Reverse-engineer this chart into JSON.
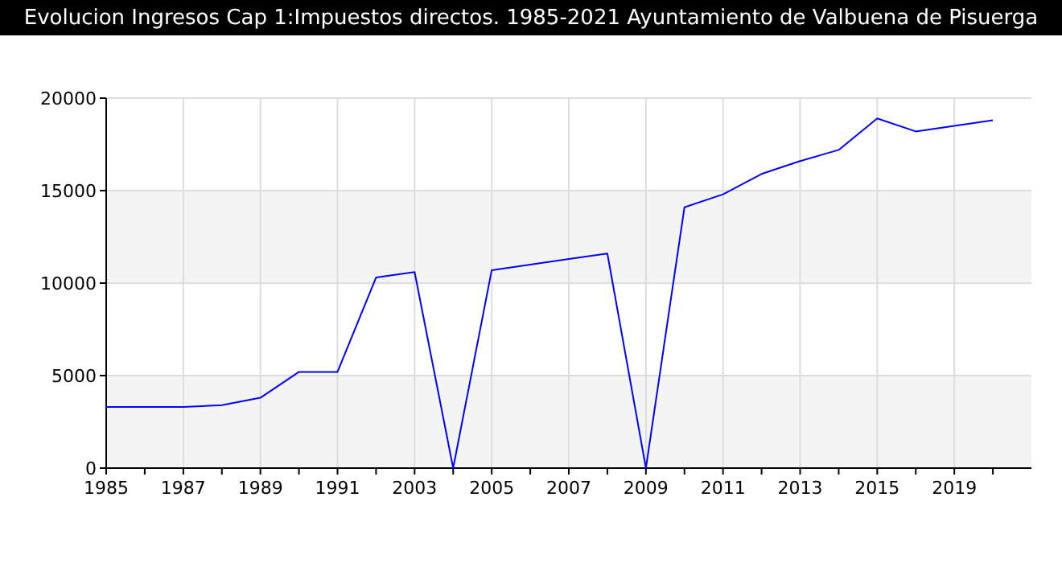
{
  "chart_data": {
    "type": "line",
    "title": "Evolucion Ingresos Cap 1:Impuestos directos. 1985-2021 Ayuntamiento de Valbuena de Pisuerga",
    "categories": [
      "1985",
      null,
      "1987",
      null,
      "1989",
      null,
      "1991",
      null,
      "2003",
      null,
      "2005",
      null,
      "2007",
      null,
      "2009",
      null,
      "2011",
      null,
      "2013",
      null,
      "2015",
      null,
      "2019",
      null
    ],
    "series": [
      {
        "color": "#0000ff",
        "values": [
          3300,
          3300,
          3300,
          3400,
          3800,
          5200,
          5200,
          10300,
          10600,
          0,
          10700,
          11000,
          11300,
          11600,
          0,
          14100,
          14800,
          15900,
          16600,
          17200,
          18900,
          18200,
          18500,
          18800
        ]
      }
    ],
    "ylim": [
      0,
      20000
    ],
    "yticks": [
      0,
      5000,
      10000,
      15000,
      20000
    ],
    "grid": true,
    "marker": "none",
    "line_style": "solid"
  }
}
